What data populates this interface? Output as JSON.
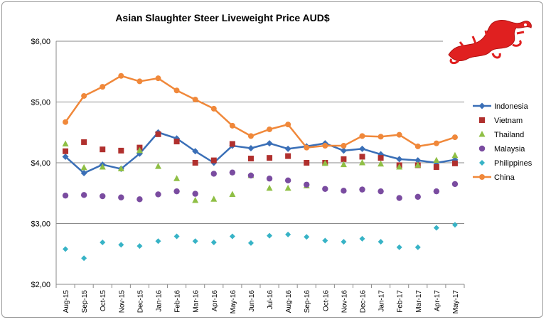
{
  "chart_data": {
    "type": "line",
    "title": "Asian Slaughter Steer Liveweight Price AUD$",
    "xlabel": "",
    "ylabel": "",
    "ylim": [
      2,
      6
    ],
    "y_ticks": [
      "$2,00",
      "$3,00",
      "$4,00",
      "$5,00",
      "$6,00"
    ],
    "y_tick_values": [
      2,
      3,
      4,
      5,
      6
    ],
    "grid": "horizontal",
    "legend_position": "right",
    "categories": [
      "Aug-15",
      "Sep-15",
      "Oct-15",
      "Nov-15",
      "Dec-15",
      "Jan-16",
      "Feb-16",
      "Mar-16",
      "Apr-16",
      "May-16",
      "Jun-16",
      "Jul-16",
      "Aug-16",
      "Sep-16",
      "Oct-16",
      "Nov-16",
      "Dec-16",
      "Jan-17",
      "Feb-17",
      "Mar-17",
      "Apr-17",
      "May-17"
    ],
    "series": [
      {
        "name": "Indonesia",
        "style": "line-marker",
        "marker": "diamond",
        "color": "#3a6fb7",
        "values": [
          4.1,
          3.83,
          3.97,
          3.9,
          4.15,
          4.5,
          4.4,
          4.19,
          4.0,
          4.28,
          4.24,
          4.32,
          4.23,
          4.27,
          4.32,
          4.2,
          4.23,
          4.14,
          4.06,
          4.04,
          4.0,
          4.05
        ]
      },
      {
        "name": "Vietnam",
        "style": "marker",
        "marker": "square",
        "color": "#b0302e",
        "values": [
          4.19,
          4.34,
          4.22,
          4.2,
          4.25,
          4.47,
          4.35,
          4.0,
          4.04,
          4.31,
          4.07,
          4.08,
          4.11,
          4.0,
          4.0,
          4.06,
          4.1,
          4.08,
          3.96,
          3.96,
          3.93,
          3.99
        ]
      },
      {
        "name": "Thailand",
        "style": "marker",
        "marker": "triangle",
        "color": "#8fbf45",
        "values": [
          4.31,
          3.92,
          3.93,
          3.9,
          4.2,
          3.94,
          3.74,
          3.38,
          3.4,
          3.48,
          3.79,
          3.58,
          3.58,
          3.62,
          3.99,
          3.97,
          4.0,
          3.98,
          3.93,
          3.96,
          4.04,
          4.12
        ]
      },
      {
        "name": "Malaysia",
        "style": "marker",
        "marker": "circle",
        "color": "#7a4ca0",
        "values": [
          3.46,
          3.47,
          3.45,
          3.43,
          3.4,
          3.48,
          3.53,
          3.49,
          3.82,
          3.84,
          3.79,
          3.74,
          3.71,
          3.64,
          3.57,
          3.54,
          3.56,
          3.53,
          3.42,
          3.44,
          3.53,
          3.65
        ]
      },
      {
        "name": "Philippines",
        "style": "marker",
        "marker": "diamond",
        "color": "#37b3c6",
        "values": [
          2.58,
          2.43,
          2.69,
          2.65,
          2.63,
          2.71,
          2.79,
          2.71,
          2.69,
          2.79,
          2.68,
          2.8,
          2.82,
          2.78,
          2.72,
          2.7,
          2.75,
          2.7,
          2.61,
          2.61,
          2.93,
          2.98
        ]
      },
      {
        "name": "China",
        "style": "line-marker",
        "marker": "circle",
        "color": "#f0883a",
        "values": [
          4.67,
          5.1,
          5.25,
          5.43,
          5.34,
          5.39,
          5.19,
          5.04,
          4.89,
          4.61,
          4.44,
          4.55,
          4.63,
          4.25,
          4.28,
          4.28,
          4.44,
          4.43,
          4.46,
          4.27,
          4.32,
          4.42
        ]
      }
    ]
  },
  "logo": {
    "icon": "red-dragon-icon",
    "color": "#e02020"
  }
}
